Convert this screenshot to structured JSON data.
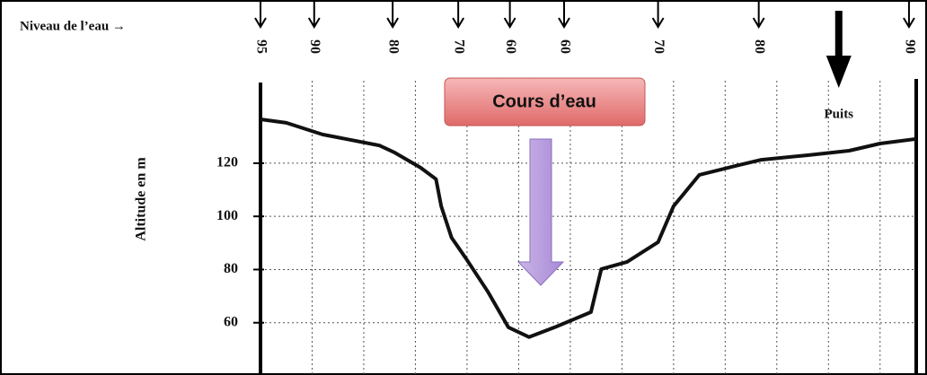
{
  "chart_data": {
    "type": "line",
    "y_label": "Altitude en m",
    "water_level_label": "Niveau de l’eau →",
    "water_levels": {
      "x": [
        0,
        1.04,
        2.56,
        3.83,
        4.83,
        5.88,
        7.7,
        9.65,
        12.56
      ],
      "values": [
        95,
        90,
        80,
        70,
        60,
        60,
        70,
        80,
        90
      ]
    },
    "well": {
      "label": "Puits",
      "x": 11.2
    },
    "annotation": "Cours d’eau",
    "x": [
      0,
      0.5,
      1.2,
      2.3,
      2.6,
      3.1,
      3.4,
      3.5,
      3.7,
      4.0,
      4.4,
      4.8,
      5.2,
      5.7,
      6.4,
      6.6,
      7.1,
      7.7,
      8.0,
      8.5,
      9.2,
      9.7,
      10.6,
      11.4,
      12.0,
      12.7
    ],
    "values": [
      136.5,
      135.2,
      130.8,
      126.7,
      124,
      118.3,
      114,
      103.8,
      92,
      83.6,
      71.8,
      58.3,
      54.6,
      58.3,
      64,
      80.2,
      82.9,
      90.3,
      103.8,
      115.6,
      119,
      121.3,
      123,
      124.7,
      127.4,
      129.1
    ],
    "color": "#111111",
    "xlim": [
      0,
      12.7
    ],
    "xticks": [
      1,
      2,
      3,
      4,
      5,
      6,
      7,
      8,
      9,
      10,
      11,
      12
    ],
    "ylim": [
      40,
      150
    ],
    "yticks": [
      60,
      80,
      100,
      120
    ],
    "grid": true
  }
}
